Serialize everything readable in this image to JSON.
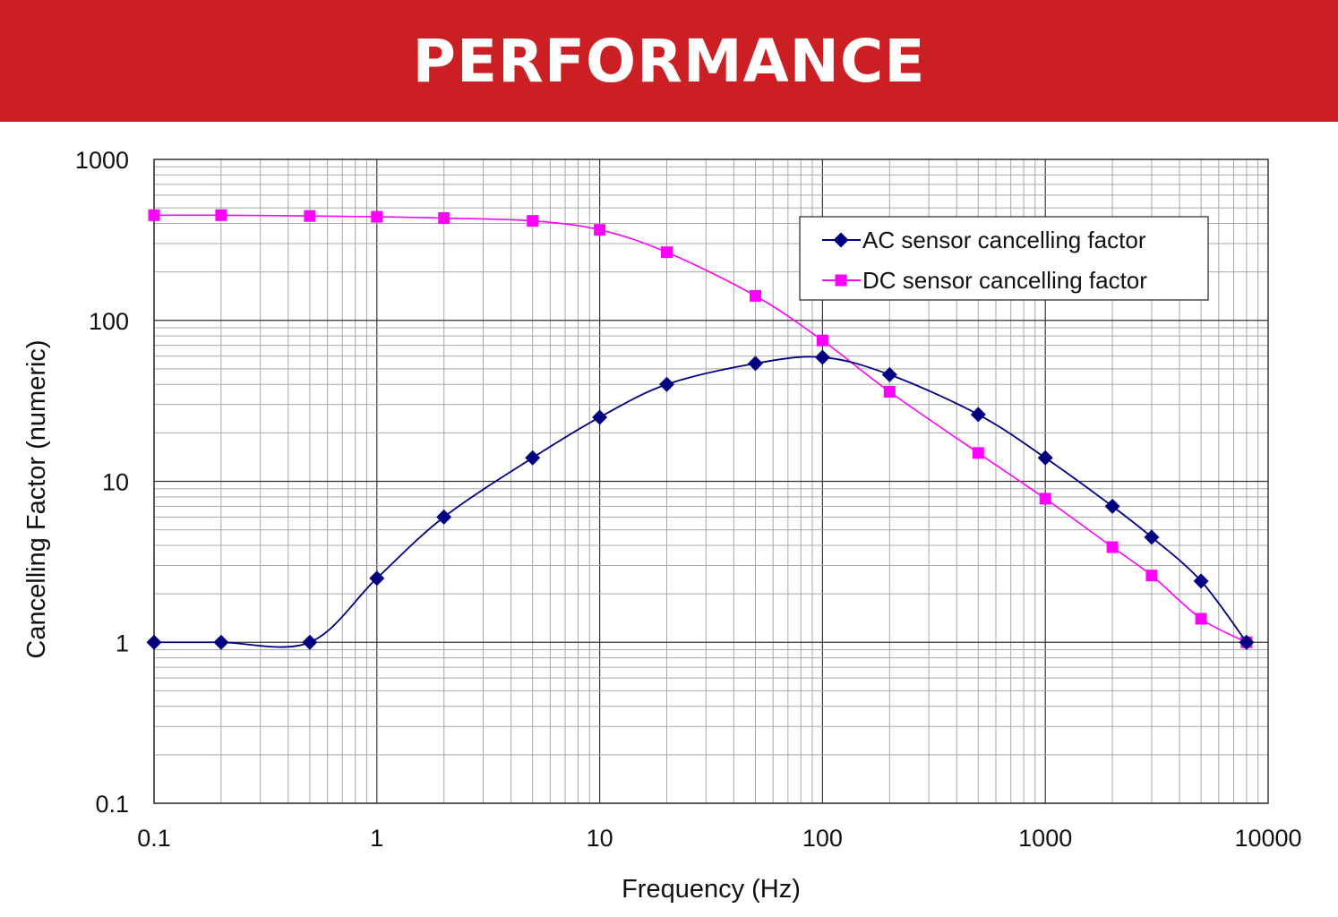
{
  "header": {
    "title": "PERFORMANCE",
    "bg_color": "#cc1f24"
  },
  "chart_data": {
    "type": "line",
    "title": "",
    "xlabel": "Frequency  (Hz)",
    "ylabel": "Cancelling Factor  (numeric)",
    "x_scale": "log",
    "y_scale": "log",
    "xlim": [
      0.1,
      10000
    ],
    "ylim": [
      0.1,
      1000
    ],
    "x_ticks": [
      "0.1",
      "1",
      "10",
      "100",
      "1000",
      "10000"
    ],
    "y_ticks": [
      "0.1",
      "1",
      "10",
      "100",
      "1000"
    ],
    "grid": true,
    "legend_position": "top-right",
    "series": [
      {
        "name": "AC sensor cancelling factor",
        "color": "#000080",
        "marker": "diamond",
        "x": [
          0.1,
          0.2,
          0.5,
          1,
          2,
          5,
          10,
          20,
          50,
          100,
          200,
          500,
          1000,
          2000,
          3000,
          5000,
          8000
        ],
        "y": [
          1,
          1,
          1,
          2.5,
          6,
          14,
          25,
          40,
          54,
          59,
          46,
          26,
          14,
          7,
          4.5,
          2.4,
          1
        ]
      },
      {
        "name": "DC sensor cancelling factor",
        "color": "#ff00ff",
        "marker": "square",
        "x": [
          0.1,
          0.2,
          0.5,
          1,
          2,
          5,
          10,
          20,
          50,
          100,
          200,
          500,
          1000,
          2000,
          3000,
          5000,
          8000
        ],
        "y": [
          450,
          450,
          445,
          440,
          432,
          415,
          365,
          265,
          142,
          75,
          36,
          15,
          7.8,
          3.9,
          2.6,
          1.4,
          1
        ]
      }
    ]
  }
}
